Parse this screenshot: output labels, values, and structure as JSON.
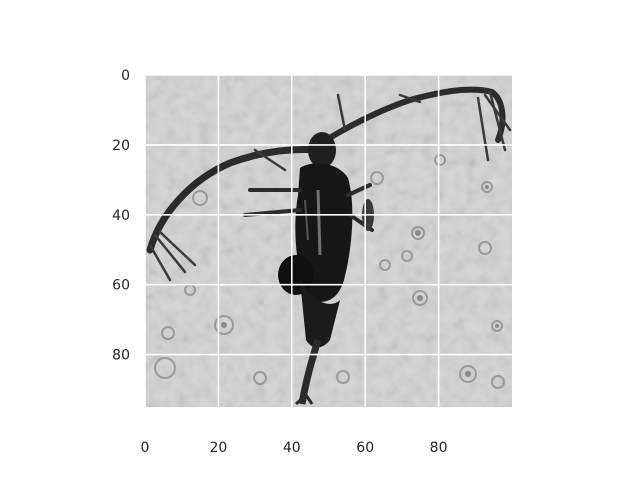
{
  "figure": {
    "image_subject": "copepod-micrograph",
    "grid": true,
    "grid_color": "#ffffff",
    "background": "#ffffff"
  },
  "axes": {
    "x": {
      "range": [
        0,
        100
      ],
      "ticks": [
        "0",
        "20",
        "40",
        "60",
        "80"
      ]
    },
    "y": {
      "range": [
        0,
        95
      ],
      "ticks": [
        "0",
        "20",
        "40",
        "60",
        "80"
      ],
      "inverted": true
    }
  }
}
